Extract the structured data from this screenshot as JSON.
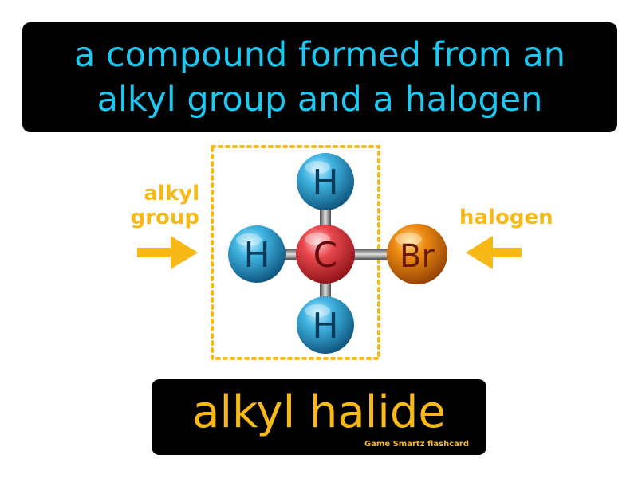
{
  "definition": {
    "line1": "a compound formed from an",
    "line2": "alkyl group and a halogen"
  },
  "labels": {
    "left_line1": "alkyl",
    "left_line2": "group",
    "right": "halogen"
  },
  "atoms": {
    "top": "H",
    "left": "H",
    "bottom": "H",
    "center": "C",
    "right": "Br"
  },
  "term": "alkyl halide",
  "credit": "Game Smartz flashcard",
  "colors": {
    "definition_text": "#1ec8f0",
    "accent": "#f7b918",
    "hydrogen": "#1c8fc0",
    "carbon": "#d8343a",
    "bromine": "#e07a0c"
  },
  "icons": [
    "left-arrow-icon",
    "right-arrow-icon"
  ]
}
